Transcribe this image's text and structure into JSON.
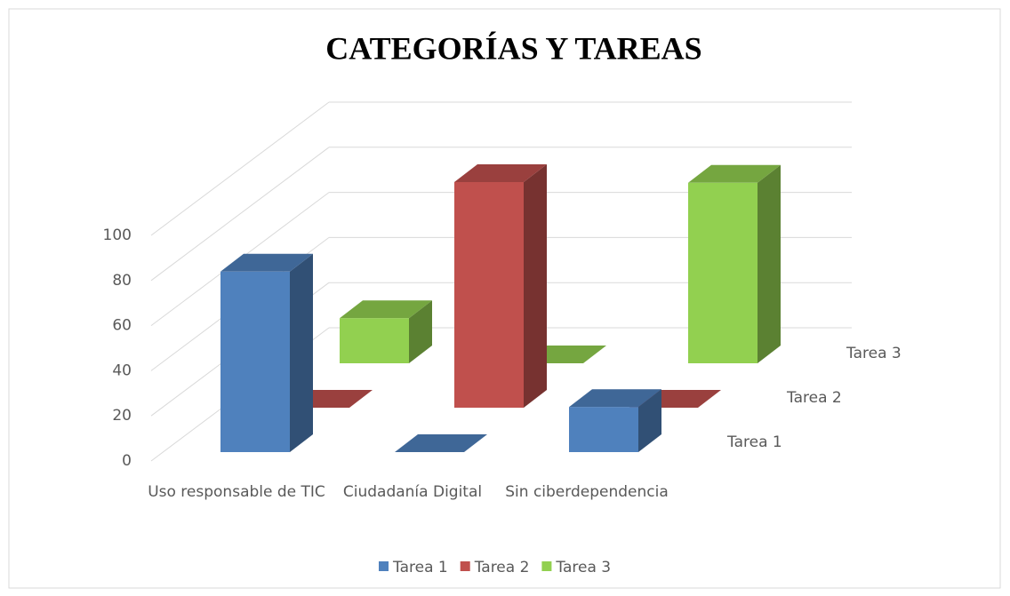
{
  "chart_data": {
    "type": "bar3d",
    "title": "CATEGORÍAS Y TAREAS",
    "categories": [
      "Uso responsable de TIC",
      "Ciudadanía Digital",
      "Sin ciberdependencia"
    ],
    "series": [
      {
        "name": "Tarea 1",
        "color": "#4f81bd",
        "values": [
          80,
          0,
          20
        ]
      },
      {
        "name": "Tarea 2",
        "color": "#c0504d",
        "values": [
          0,
          100,
          0
        ]
      },
      {
        "name": "Tarea 3",
        "color": "#92d050",
        "values": [
          20,
          0,
          80
        ]
      }
    ],
    "ylim": [
      0,
      100
    ],
    "yticks": [
      0,
      20,
      40,
      60,
      80,
      100
    ],
    "grid": true,
    "legend": "bottom"
  }
}
